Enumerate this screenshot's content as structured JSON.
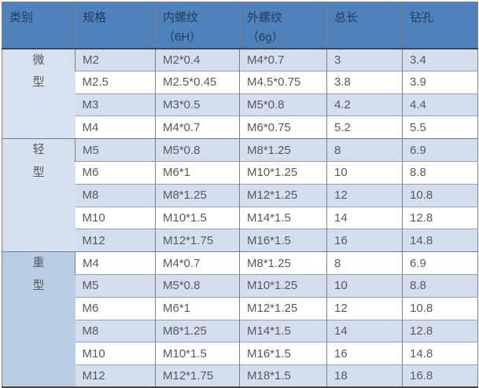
{
  "colors": {
    "header_bg": "#4F81BD",
    "header_text": "#253C55",
    "row_stripe_bg": "#D3DFEE",
    "row_white_bg": "#FFFFFF",
    "group_micro_bg": "#D6E2F0",
    "group_light_bg": "#D5E1EF",
    "group_heavy_bg": "#B9CDE5",
    "body_text": "#595959",
    "border_gray": "#808080",
    "dark_line": "#454545"
  },
  "table": {
    "headers": [
      {
        "label": "类别",
        "sub": ""
      },
      {
        "label": "规格",
        "sub": ""
      },
      {
        "label": "内螺纹",
        "sub": "（6H）"
      },
      {
        "label": "外螺纹",
        "sub": "（6g）"
      },
      {
        "label": "总长",
        "sub": ""
      },
      {
        "label": "钻孔",
        "sub": ""
      }
    ],
    "groups": [
      {
        "name": "微型",
        "line1": "微",
        "line2": "型"
      },
      {
        "name": "轻型",
        "line1": "轻",
        "line2": "型"
      },
      {
        "name": "重型",
        "line1": "重",
        "line2": "型"
      }
    ],
    "rows": [
      {
        "group": "微型",
        "spec": "M2",
        "internal_thread": "M2*0.4",
        "external_thread": "M4*0.7",
        "total_length": "3",
        "drill_hole": "3.4"
      },
      {
        "group": "微型",
        "spec": "M2.5",
        "internal_thread": "M2.5*0.45",
        "external_thread": "M4.5*0.75",
        "total_length": "3.8",
        "drill_hole": "3.9"
      },
      {
        "group": "微型",
        "spec": "M3",
        "internal_thread": "M3*0.5",
        "external_thread": "M5*0.8",
        "total_length": "4.2",
        "drill_hole": "4.4"
      },
      {
        "group": "微型",
        "spec": "M4",
        "internal_thread": "M4*0.7",
        "external_thread": "M6*0.75",
        "total_length": "5.2",
        "drill_hole": "5.5"
      },
      {
        "group": "轻型",
        "spec": "M5",
        "internal_thread": "M5*0.8",
        "external_thread": "M8*1.25",
        "total_length": "8",
        "drill_hole": "6.9"
      },
      {
        "group": "轻型",
        "spec": "M6",
        "internal_thread": "M6*1",
        "external_thread": "M10*1.25",
        "total_length": "10",
        "drill_hole": "8.8"
      },
      {
        "group": "轻型",
        "spec": "M8",
        "internal_thread": "M8*1.25",
        "external_thread": "M12*1.25",
        "total_length": "12",
        "drill_hole": "10.8"
      },
      {
        "group": "轻型",
        "spec": "M10",
        "internal_thread": "M10*1.5",
        "external_thread": "M14*1.5",
        "total_length": "14",
        "drill_hole": "12.8"
      },
      {
        "group": "轻型",
        "spec": "M12",
        "internal_thread": "M12*1.75",
        "external_thread": "M16*1.5",
        "total_length": "16",
        "drill_hole": "14.8"
      },
      {
        "group": "重型",
        "spec": "M4",
        "internal_thread": "M4*0.7",
        "external_thread": "M8*1.25",
        "total_length": "8",
        "drill_hole": "6.9"
      },
      {
        "group": "重型",
        "spec": "M5",
        "internal_thread": "M5*0.8",
        "external_thread": "M10*1.25",
        "total_length": "10",
        "drill_hole": "8.8"
      },
      {
        "group": "重型",
        "spec": "M6",
        "internal_thread": "M6*1",
        "external_thread": "M12*1.25",
        "total_length": "12",
        "drill_hole": "10.8"
      },
      {
        "group": "重型",
        "spec": "M8",
        "internal_thread": "M8*1.25",
        "external_thread": "M14*1.5",
        "total_length": "14",
        "drill_hole": "12.8"
      },
      {
        "group": "重型",
        "spec": "M10",
        "internal_thread": "M10*1.5",
        "external_thread": "M16*1.5",
        "total_length": "16",
        "drill_hole": "14.8"
      },
      {
        "group": "重型",
        "spec": "M12",
        "internal_thread": "M12*1.75",
        "external_thread": "M18*1.5",
        "total_length": "18",
        "drill_hole": "16.8"
      }
    ]
  }
}
